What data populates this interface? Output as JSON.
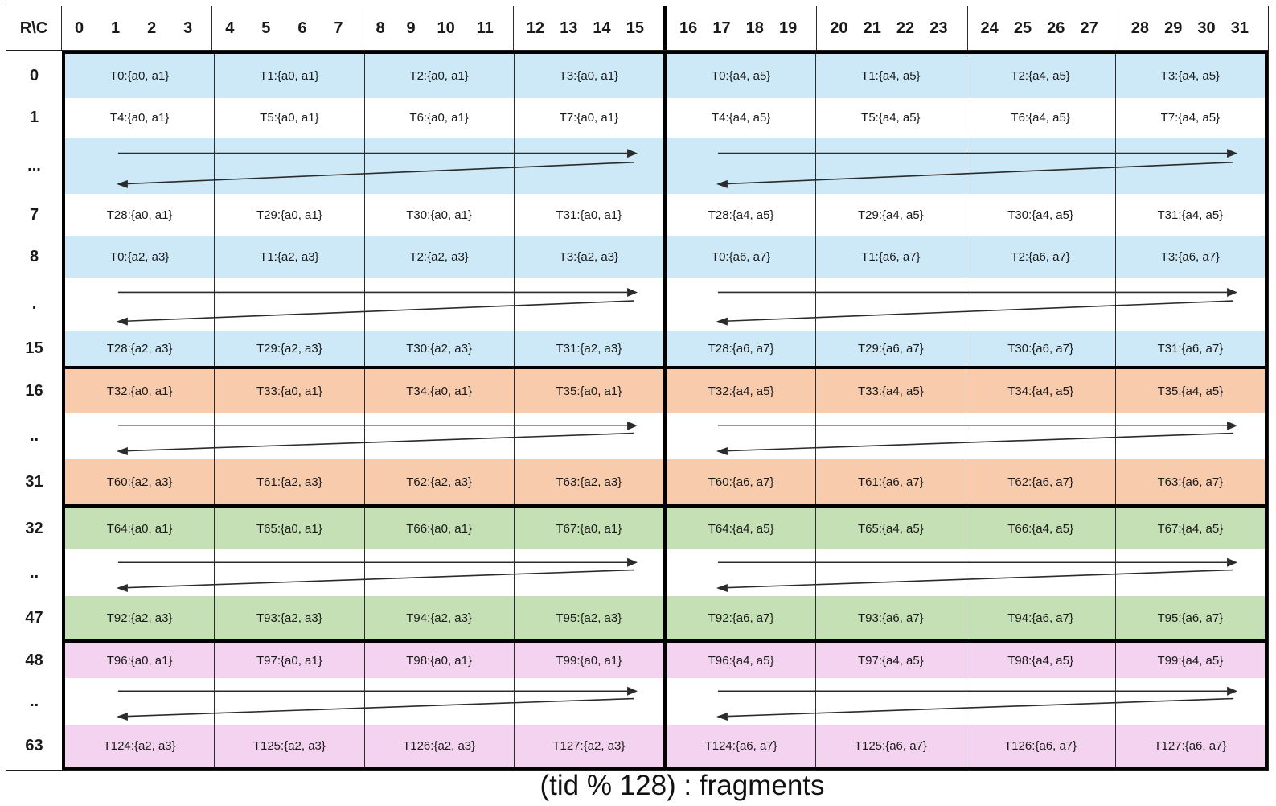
{
  "caption": "(tid % 128) : fragments",
  "corner_label": "R\\C",
  "header": {
    "col_groups": [
      [
        "0",
        "1",
        "2",
        "3"
      ],
      [
        "4",
        "5",
        "6",
        "7"
      ],
      [
        "8",
        "9",
        "10",
        "11"
      ],
      [
        "12",
        "13",
        "14",
        "15"
      ],
      [
        "16",
        "17",
        "18",
        "19"
      ],
      [
        "20",
        "21",
        "22",
        "23"
      ],
      [
        "24",
        "25",
        "26",
        "27"
      ],
      [
        "28",
        "29",
        "30",
        "31"
      ]
    ]
  },
  "grid": {
    "arrow_color": "#2b2b2b",
    "thick_border_color": "#000000",
    "thin_line_color": "#2b2b2b",
    "blocks": [
      {
        "rows_range": "0-15",
        "color_name": "blue",
        "fill": "#CDE9F8",
        "rows": [
          {
            "label": "0",
            "kind": "data",
            "shaded": true,
            "cells": [
              "T0:{a0, a1}",
              "T1:{a0, a1}",
              "T2:{a0, a1}",
              "T3:{a0, a1}",
              "T0:{a4, a5}",
              "T1:{a4, a5}",
              "T2:{a4, a5}",
              "T3:{a4, a5}"
            ]
          },
          {
            "label": "1",
            "kind": "data",
            "shaded": false,
            "cells": [
              "T4:{a0, a1}",
              "T5:{a0, a1}",
              "T6:{a0, a1}",
              "T7:{a0, a1}",
              "T4:{a4, a5}",
              "T5:{a4, a5}",
              "T6:{a4, a5}",
              "T7:{a4, a5}"
            ]
          },
          {
            "label": "...",
            "kind": "arrows",
            "shaded": true
          },
          {
            "label": "7",
            "kind": "data",
            "shaded": false,
            "cells": [
              "T28:{a0, a1}",
              "T29:{a0, a1}",
              "T30:{a0, a1}",
              "T31:{a0, a1}",
              "T28:{a4, a5}",
              "T29:{a4, a5}",
              "T30:{a4, a5}",
              "T31:{a4, a5}"
            ]
          },
          {
            "label": "8",
            "kind": "data",
            "shaded": true,
            "cells": [
              "T0:{a2, a3}",
              "T1:{a2, a3}",
              "T2:{a2, a3}",
              "T3:{a2, a3}",
              "T0:{a6, a7}",
              "T1:{a6, a7}",
              "T2:{a6, a7}",
              "T3:{a6, a7}"
            ]
          },
          {
            "label": ".",
            "kind": "arrows",
            "shaded": false
          },
          {
            "label": "15",
            "kind": "data",
            "shaded": true,
            "cells": [
              "T28:{a2, a3}",
              "T29:{a2, a3}",
              "T30:{a2, a3}",
              "T31:{a2, a3}",
              "T28:{a6, a7}",
              "T29:{a6, a7}",
              "T30:{a6, a7}",
              "T31:{a6, a7}"
            ]
          }
        ]
      },
      {
        "rows_range": "16-31",
        "color_name": "orange",
        "fill": "#F8CBAD",
        "rows": [
          {
            "label": "16",
            "kind": "data",
            "shaded": true,
            "cells": [
              "T32:{a0, a1}",
              "T33:{a0, a1}",
              "T34:{a0, a1}",
              "T35:{a0, a1}",
              "T32:{a4, a5}",
              "T33:{a4, a5}",
              "T34:{a4, a5}",
              "T35:{a4, a5}"
            ]
          },
          {
            "label": "..",
            "kind": "arrows",
            "shaded": false
          },
          {
            "label": "31",
            "kind": "data",
            "shaded": true,
            "cells": [
              "T60:{a2, a3}",
              "T61:{a2, a3}",
              "T62:{a2, a3}",
              "T63:{a2, a3}",
              "T60:{a6, a7}",
              "T61:{a6, a7}",
              "T62:{a6, a7}",
              "T63:{a6, a7}"
            ]
          }
        ]
      },
      {
        "rows_range": "32-47",
        "color_name": "green",
        "fill": "#C5E0B4",
        "rows": [
          {
            "label": "32",
            "kind": "data",
            "shaded": true,
            "cells": [
              "T64:{a0, a1}",
              "T65:{a0, a1}",
              "T66:{a0, a1}",
              "T67:{a0, a1}",
              "T64:{a4, a5}",
              "T65:{a4, a5}",
              "T66:{a4, a5}",
              "T67:{a4, a5}"
            ]
          },
          {
            "label": "..",
            "kind": "arrows",
            "shaded": false
          },
          {
            "label": "47",
            "kind": "data",
            "shaded": true,
            "cells": [
              "T92:{a2, a3}",
              "T93:{a2, a3}",
              "T94:{a2, a3}",
              "T95:{a2, a3}",
              "T92:{a6, a7}",
              "T93:{a6, a7}",
              "T94:{a6, a7}",
              "T95:{a6, a7}"
            ]
          }
        ]
      },
      {
        "rows_range": "48-63",
        "color_name": "pink",
        "fill": "#F3D3F0",
        "rows": [
          {
            "label": "48",
            "kind": "data",
            "shaded": true,
            "cells": [
              "T96:{a0, a1}",
              "T97:{a0, a1}",
              "T98:{a0, a1}",
              "T99:{a0, a1}",
              "T96:{a4, a5}",
              "T97:{a4, a5}",
              "T98:{a4, a5}",
              "T99:{a4, a5}"
            ]
          },
          {
            "label": "..",
            "kind": "arrows",
            "shaded": false
          },
          {
            "label": "63",
            "kind": "data",
            "shaded": true,
            "cells": [
              "T124:{a2, a3}",
              "T125:{a2, a3}",
              "T126:{a2, a3}",
              "T127:{a2, a3}",
              "T124:{a6, a7}",
              "T125:{a6, a7}",
              "T126:{a6, a7}",
              "T127:{a6, a7}"
            ]
          }
        ]
      }
    ]
  }
}
